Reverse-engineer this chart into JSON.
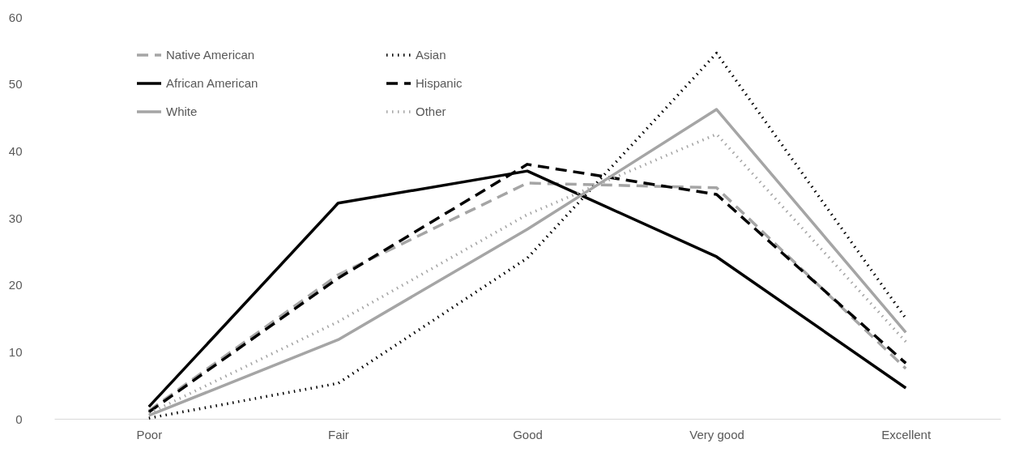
{
  "chart_data": {
    "type": "line",
    "categories": [
      "Poor",
      "Fair",
      "Good",
      "Very good",
      "Excellent"
    ],
    "series": [
      {
        "name": "Native American",
        "color": "#a5a5a5",
        "line_style": "dashed",
        "values": [
          1.2,
          21.5,
          35.2,
          34.5,
          7.5
        ]
      },
      {
        "name": "Asian",
        "color": "#000000",
        "line_style": "dotted",
        "values": [
          0.1,
          5.3,
          24,
          54.6,
          15
        ]
      },
      {
        "name": "African American",
        "color": "#000000",
        "line_style": "solid",
        "values": [
          1.8,
          32.2,
          37,
          24.2,
          4.6
        ]
      },
      {
        "name": "Hispanic",
        "color": "#000000",
        "line_style": "dashed",
        "values": [
          1,
          21,
          38,
          33.5,
          8.3
        ]
      },
      {
        "name": "White",
        "color": "#a5a5a5",
        "line_style": "solid",
        "values": [
          0.5,
          11.8,
          28.3,
          46.2,
          12.9
        ]
      },
      {
        "name": "Other",
        "color": "#a5a5a5",
        "line_style": "dotted",
        "values": [
          0.8,
          14.5,
          30.5,
          42.5,
          11.5
        ]
      }
    ],
    "ylim": [
      0,
      60
    ],
    "yticks": [
      0,
      10,
      20,
      30,
      40,
      50,
      60
    ],
    "legend": "top left",
    "marker": "none",
    "grid": false
  }
}
